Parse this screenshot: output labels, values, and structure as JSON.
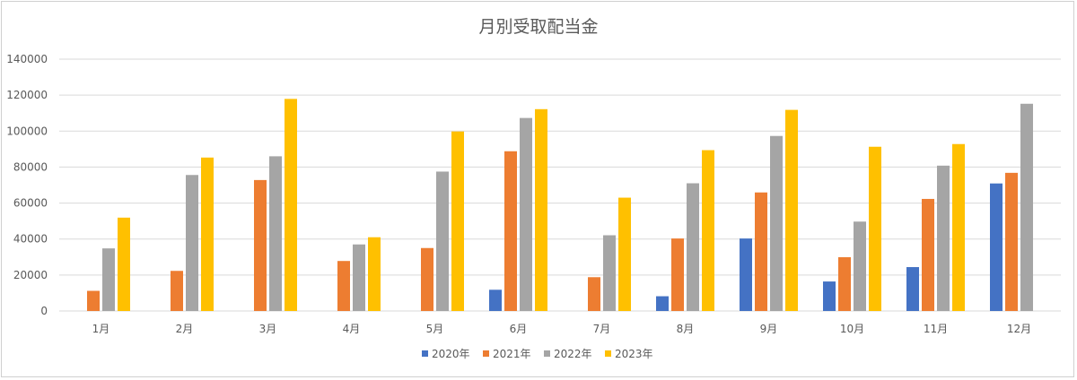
{
  "chart_data": {
    "type": "bar",
    "title": "月別受取配当金",
    "xlabel": "",
    "ylabel": "",
    "ylim": [
      0,
      140000
    ],
    "yticks": [
      0,
      20000,
      40000,
      60000,
      80000,
      100000,
      120000,
      140000
    ],
    "grid": true,
    "legend_position": "bottom",
    "categories": [
      "1月",
      "2月",
      "3月",
      "4月",
      "5月",
      "6月",
      "7月",
      "8月",
      "9月",
      "10月",
      "11月",
      "12月"
    ],
    "series": [
      {
        "name": "2020年",
        "color": "#4472C4",
        "values": [
          0,
          0,
          0,
          0,
          0,
          11800,
          0,
          8200,
          40300,
          16400,
          24400,
          70900
        ]
      },
      {
        "name": "2021年",
        "color": "#ED7D31",
        "values": [
          11200,
          22300,
          72800,
          27800,
          35000,
          88800,
          18800,
          40300,
          65900,
          29900,
          62300,
          76800
        ]
      },
      {
        "name": "2022年",
        "color": "#A5A5A5",
        "values": [
          34800,
          75600,
          86000,
          37000,
          77500,
          107300,
          42100,
          71000,
          97300,
          49700,
          80800,
          115200
        ]
      },
      {
        "name": "2023年",
        "color": "#FFC000",
        "values": [
          51900,
          85300,
          117900,
          41000,
          99800,
          112200,
          63000,
          89400,
          111800,
          91300,
          92800,
          0
        ]
      }
    ]
  }
}
